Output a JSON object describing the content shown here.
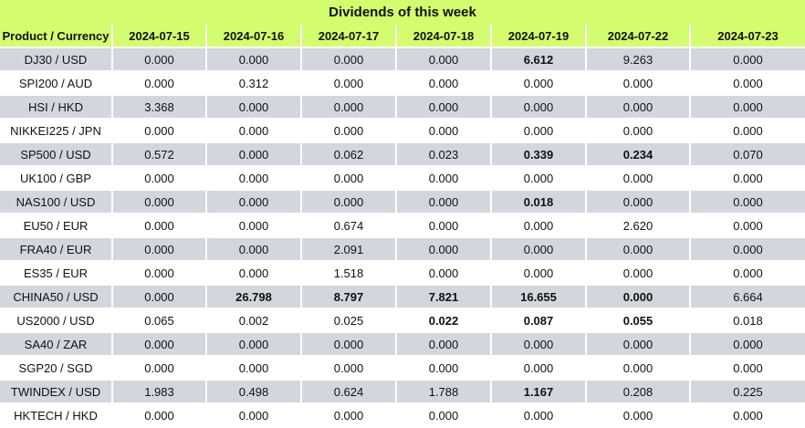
{
  "title": "Dividends of this week",
  "header": {
    "product_label": "Product / Currency",
    "dates": [
      "2024-07-15",
      "2024-07-16",
      "2024-07-17",
      "2024-07-18",
      "2024-07-19",
      "2024-07-22",
      "2024-07-23"
    ]
  },
  "rows": [
    {
      "product": "DJ30 / USD",
      "values": [
        "0.000",
        "0.000",
        "0.000",
        "0.000",
        "6.612",
        "9.263",
        "0.000"
      ],
      "bold": [
        false,
        false,
        false,
        false,
        true,
        false,
        false
      ]
    },
    {
      "product": "SPI200 / AUD",
      "values": [
        "0.000",
        "0.312",
        "0.000",
        "0.000",
        "0.000",
        "0.000",
        "0.000"
      ],
      "bold": [
        false,
        false,
        false,
        false,
        false,
        false,
        false
      ]
    },
    {
      "product": "HSI / HKD",
      "values": [
        "3.368",
        "0.000",
        "0.000",
        "0.000",
        "0.000",
        "0.000",
        "0.000"
      ],
      "bold": [
        false,
        false,
        false,
        false,
        false,
        false,
        false
      ]
    },
    {
      "product": "NIKKEI225 / JPN",
      "values": [
        "0.000",
        "0.000",
        "0.000",
        "0.000",
        "0.000",
        "0.000",
        "0.000"
      ],
      "bold": [
        false,
        false,
        false,
        false,
        false,
        false,
        false
      ]
    },
    {
      "product": "SP500 / USD",
      "values": [
        "0.572",
        "0.000",
        "0.062",
        "0.023",
        "0.339",
        "0.234",
        "0.070"
      ],
      "bold": [
        false,
        false,
        false,
        false,
        true,
        true,
        false
      ]
    },
    {
      "product": "UK100 / GBP",
      "values": [
        "0.000",
        "0.000",
        "0.000",
        "0.000",
        "0.000",
        "0.000",
        "0.000"
      ],
      "bold": [
        false,
        false,
        false,
        false,
        false,
        false,
        false
      ]
    },
    {
      "product": "NAS100 / USD",
      "values": [
        "0.000",
        "0.000",
        "0.000",
        "0.000",
        "0.018",
        "0.000",
        "0.000"
      ],
      "bold": [
        false,
        false,
        false,
        false,
        true,
        false,
        false
      ]
    },
    {
      "product": "EU50 / EUR",
      "values": [
        "0.000",
        "0.000",
        "0.674",
        "0.000",
        "0.000",
        "2.620",
        "0.000"
      ],
      "bold": [
        false,
        false,
        false,
        false,
        false,
        false,
        false
      ]
    },
    {
      "product": "FRA40 / EUR",
      "values": [
        "0.000",
        "0.000",
        "2.091",
        "0.000",
        "0.000",
        "0.000",
        "0.000"
      ],
      "bold": [
        false,
        false,
        false,
        false,
        false,
        false,
        false
      ]
    },
    {
      "product": "ES35 / EUR",
      "values": [
        "0.000",
        "0.000",
        "1.518",
        "0.000",
        "0.000",
        "0.000",
        "0.000"
      ],
      "bold": [
        false,
        false,
        false,
        false,
        false,
        false,
        false
      ]
    },
    {
      "product": "CHINA50 / USD",
      "values": [
        "0.000",
        "26.798",
        "8.797",
        "7.821",
        "16.655",
        "0.000",
        "6.664"
      ],
      "bold": [
        false,
        true,
        true,
        true,
        true,
        true,
        false
      ]
    },
    {
      "product": "US2000 / USD",
      "values": [
        "0.065",
        "0.002",
        "0.025",
        "0.022",
        "0.087",
        "0.055",
        "0.018"
      ],
      "bold": [
        false,
        false,
        false,
        true,
        true,
        true,
        false
      ]
    },
    {
      "product": "SA40 / ZAR",
      "values": [
        "0.000",
        "0.000",
        "0.000",
        "0.000",
        "0.000",
        "0.000",
        "0.000"
      ],
      "bold": [
        false,
        false,
        false,
        false,
        false,
        false,
        false
      ]
    },
    {
      "product": "SGP20 / SGD",
      "values": [
        "0.000",
        "0.000",
        "0.000",
        "0.000",
        "0.000",
        "0.000",
        "0.000"
      ],
      "bold": [
        false,
        false,
        false,
        false,
        false,
        false,
        false
      ]
    },
    {
      "product": "TWINDEX / USD",
      "values": [
        "1.983",
        "0.498",
        "0.624",
        "1.788",
        "1.167",
        "0.208",
        "0.225"
      ],
      "bold": [
        false,
        false,
        false,
        false,
        true,
        false,
        false
      ]
    },
    {
      "product": "HKTECH / HKD",
      "values": [
        "0.000",
        "0.000",
        "0.000",
        "0.000",
        "0.000",
        "0.000",
        "0.000"
      ],
      "bold": [
        false,
        false,
        false,
        false,
        false,
        false,
        false
      ]
    }
  ],
  "colors": {
    "header_bg": "#d4fc6f",
    "row_odd_bg": "#d3d6dd",
    "row_even_bg": "#ffffff"
  }
}
